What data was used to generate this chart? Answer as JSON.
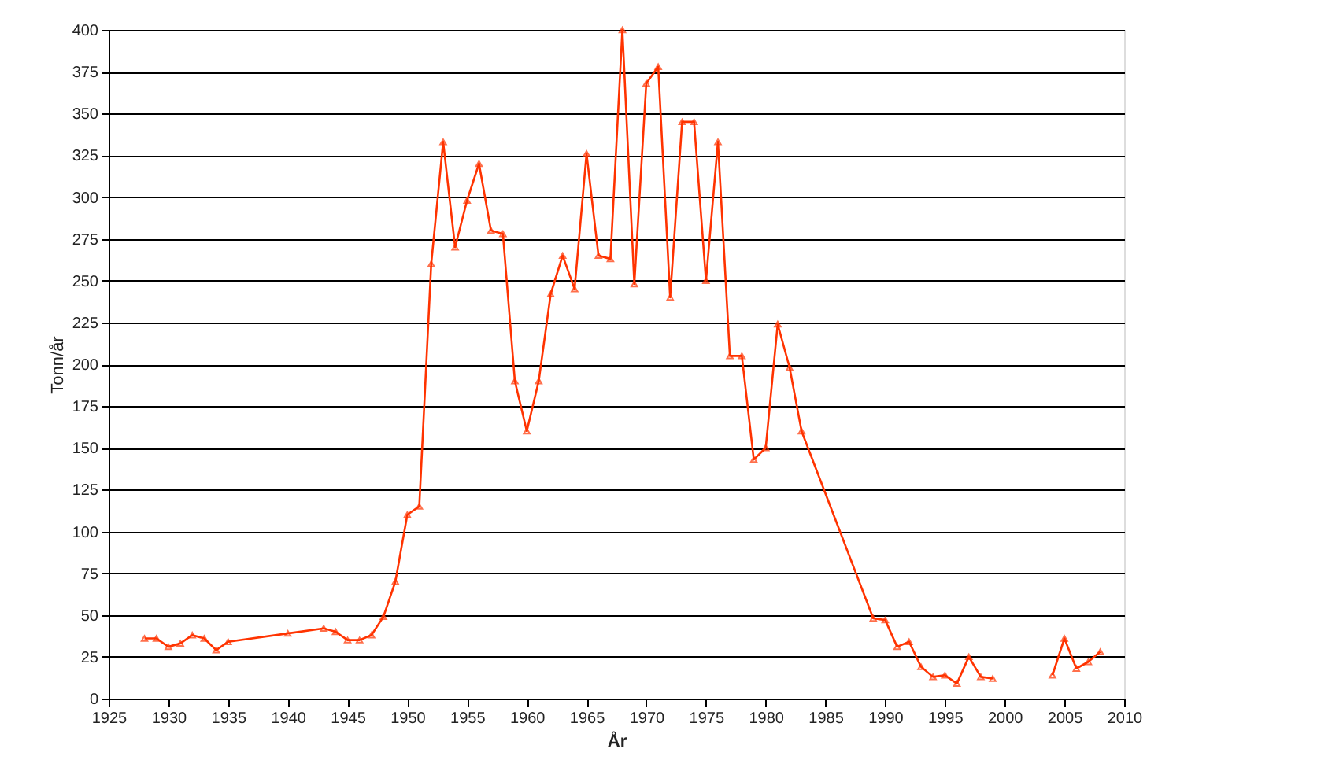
{
  "chart_data": {
    "type": "line",
    "xlabel": "År",
    "ylabel": "Tonn/år",
    "x": [
      1928,
      1929,
      1930,
      1931,
      1932,
      1933,
      1934,
      1935,
      1940,
      1943,
      1944,
      1945,
      1946,
      1947,
      1948,
      1949,
      1950,
      1951,
      1952,
      1953,
      1954,
      1955,
      1956,
      1957,
      1958,
      1959,
      1960,
      1961,
      1962,
      1963,
      1964,
      1965,
      1966,
      1967,
      1968,
      1969,
      1970,
      1971,
      1972,
      1973,
      1974,
      1975,
      1976,
      1977,
      1978,
      1979,
      1980,
      1981,
      1982,
      1983,
      1989,
      1990,
      1991,
      1992,
      1993,
      1994,
      1995,
      1996,
      1997,
      1998,
      1999,
      2000,
      2004,
      2005,
      2006,
      2007,
      2008
    ],
    "series": [
      {
        "color": "#ff3300",
        "values": [
          36,
          36,
          31,
          33,
          38,
          36,
          29,
          34,
          39,
          42,
          40,
          35,
          35,
          38,
          49,
          70,
          110,
          115,
          260,
          333,
          270,
          298,
          320,
          280,
          278,
          190,
          160,
          190,
          242,
          265,
          245,
          326,
          265,
          263,
          400,
          248,
          368,
          378,
          240,
          345,
          345,
          250,
          333,
          205,
          205,
          143,
          150,
          224,
          198,
          160,
          48,
          47,
          31,
          34,
          19,
          13,
          14,
          9,
          25,
          13,
          12,
          null,
          14,
          36,
          18,
          22,
          28
        ]
      }
    ],
    "xlim": [
      1925,
      2010
    ],
    "xticks": [
      1925,
      1930,
      1935,
      1940,
      1945,
      1950,
      1955,
      1960,
      1965,
      1970,
      1975,
      1980,
      1985,
      1990,
      1995,
      2000,
      2005,
      2010
    ],
    "ylim": [
      0,
      400
    ],
    "yticks": [
      0,
      25,
      50,
      75,
      100,
      125,
      150,
      175,
      200,
      225,
      250,
      275,
      300,
      325,
      350,
      375,
      400
    ],
    "grid": "y",
    "marker": "triangle",
    "line_style": "solid",
    "legend": false
  }
}
